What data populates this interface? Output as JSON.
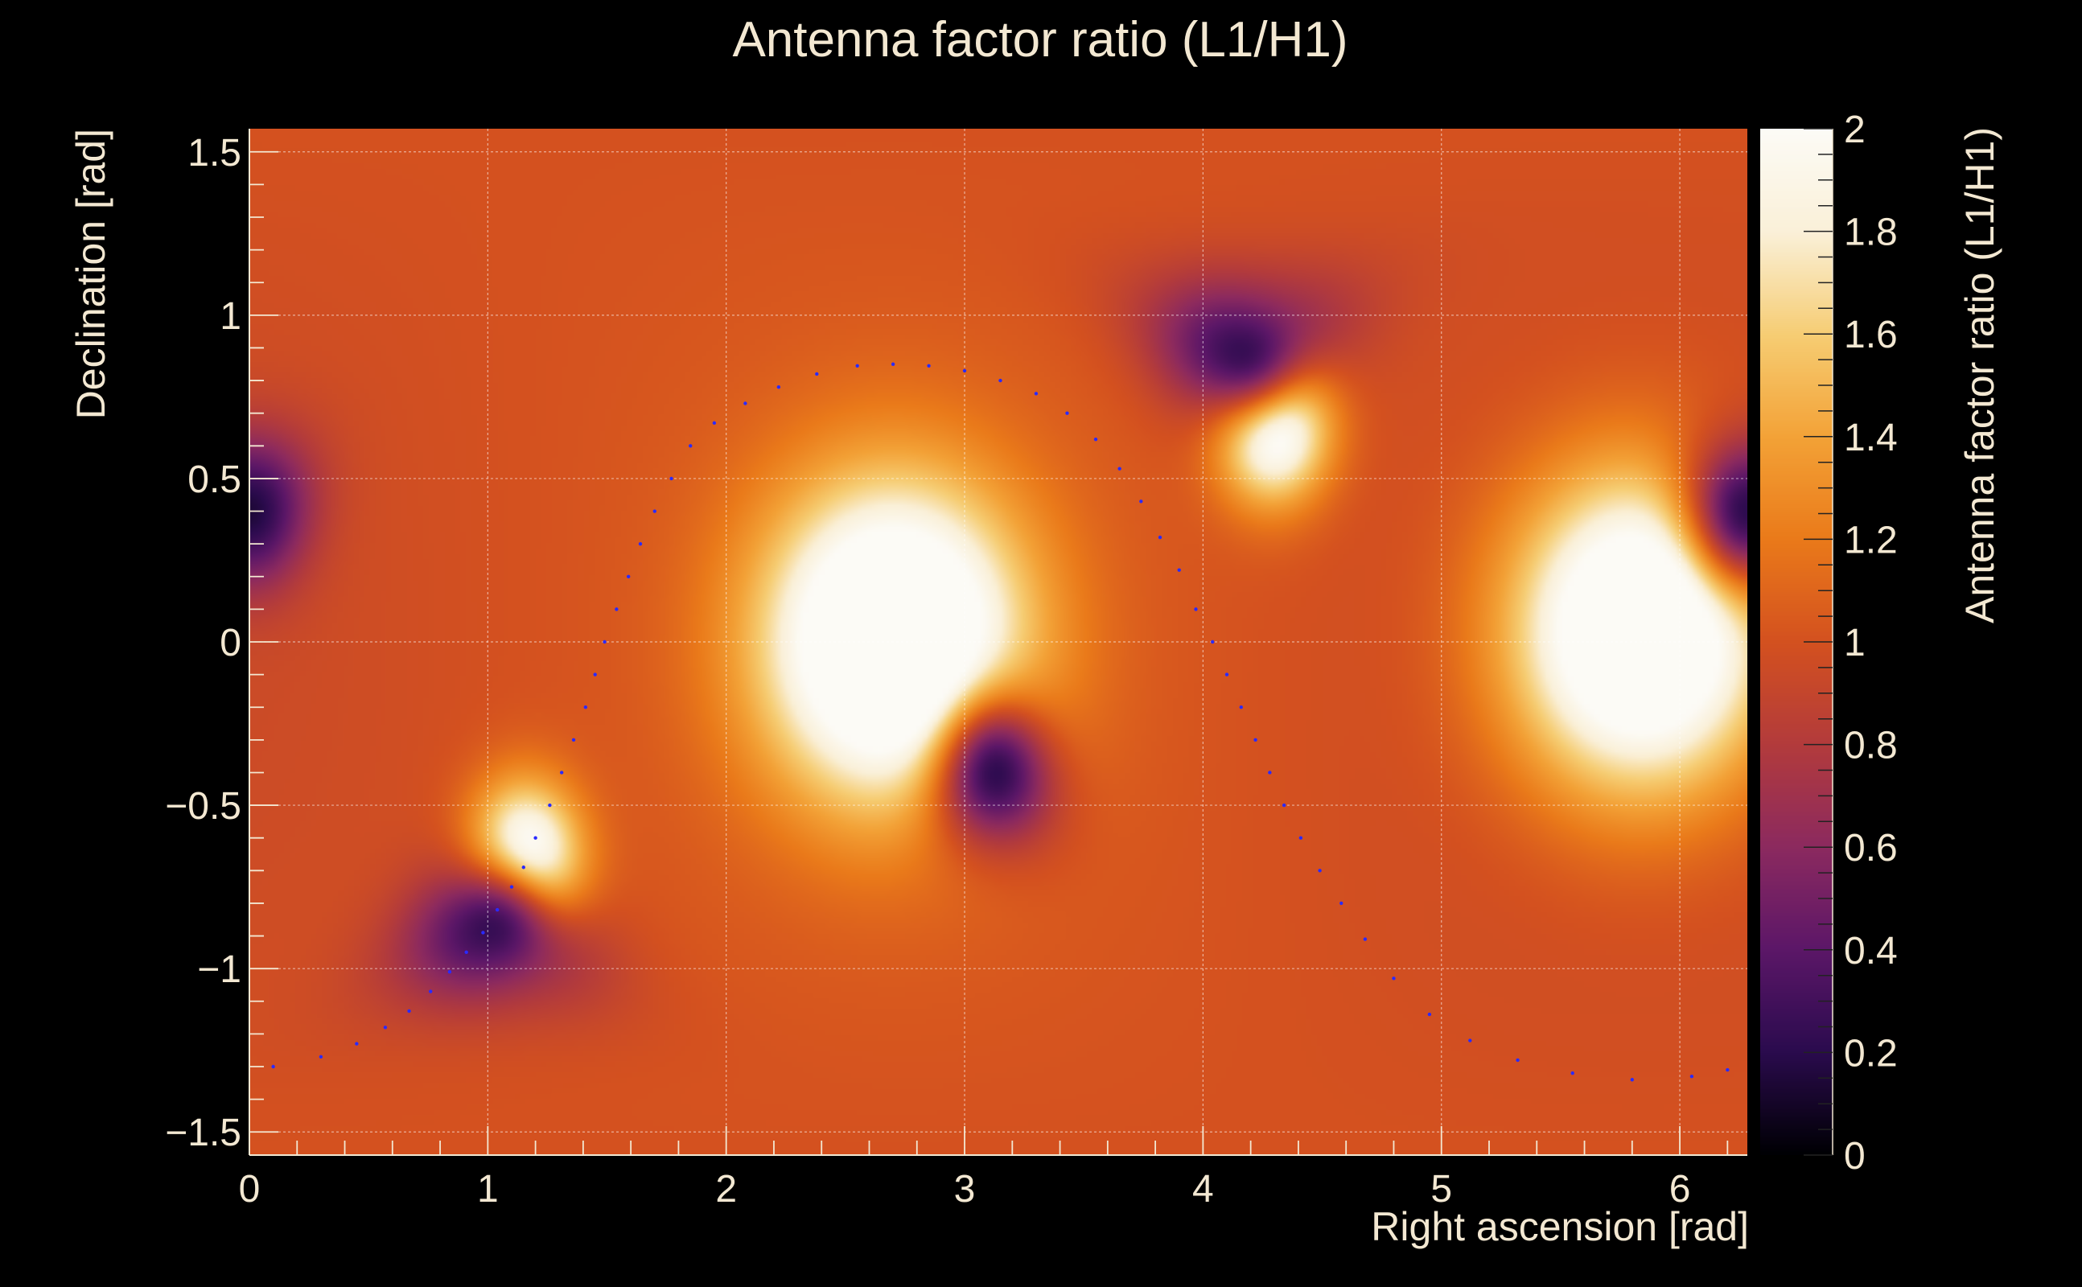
{
  "chart_data": {
    "type": "heatmap",
    "title": "Antenna factor ratio (L1/H1)",
    "xlabel": "Right ascension [rad]",
    "ylabel": "Declination [rad]",
    "zlabel": "Antenna factor ratio (L1/H1)",
    "xlim": [
      0,
      6.2832
    ],
    "ylim": [
      -1.5708,
      1.5708
    ],
    "zlim": [
      0,
      2
    ],
    "x_ticks": [
      {
        "value": 0,
        "label": "0"
      },
      {
        "value": 1,
        "label": "1"
      },
      {
        "value": 2,
        "label": "2"
      },
      {
        "value": 3,
        "label": "3"
      },
      {
        "value": 4,
        "label": "4"
      },
      {
        "value": 5,
        "label": "5"
      },
      {
        "value": 6,
        "label": "6"
      }
    ],
    "y_ticks": [
      {
        "value": -1.5,
        "label": "−1.5"
      },
      {
        "value": -1,
        "label": "−1"
      },
      {
        "value": -0.5,
        "label": "−0.5"
      },
      {
        "value": 0,
        "label": "0"
      },
      {
        "value": 0.5,
        "label": "0.5"
      },
      {
        "value": 1,
        "label": "1"
      },
      {
        "value": 1.5,
        "label": "1.5"
      }
    ],
    "z_ticks": [
      {
        "value": 0,
        "label": "0"
      },
      {
        "value": 0.2,
        "label": "0.2"
      },
      {
        "value": 0.4,
        "label": "0.4"
      },
      {
        "value": 0.6,
        "label": "0.6"
      },
      {
        "value": 0.8,
        "label": "0.8"
      },
      {
        "value": 1,
        "label": "1"
      },
      {
        "value": 1.2,
        "label": "1.2"
      },
      {
        "value": 1.4,
        "label": "1.4"
      },
      {
        "value": 1.6,
        "label": "1.6"
      },
      {
        "value": 1.8,
        "label": "1.8"
      },
      {
        "value": 2,
        "label": "2"
      }
    ],
    "grid": true,
    "colormap": [
      "#000004",
      "#2b0b4e",
      "#5c1768",
      "#8c2a5f",
      "#b33b3c",
      "#d4511f",
      "#ea7a1a",
      "#f3a237",
      "#f6cd73",
      "#faf0d8",
      "#fcfbf6"
    ],
    "features": [
      {
        "kind": "max",
        "ra": 2.7,
        "dec": 0.0,
        "value": 2.0
      },
      {
        "kind": "max",
        "ra": 5.84,
        "dec": 0.03,
        "value": 2.0
      },
      {
        "kind": "max",
        "ra": 4.29,
        "dec": 0.7,
        "value": 2.0
      },
      {
        "kind": "max",
        "ra": 1.15,
        "dec": -0.7,
        "value": 2.0
      },
      {
        "kind": "min",
        "ra": 3.13,
        "dec": -0.4,
        "value": 0.0
      },
      {
        "kind": "min",
        "ra": 4.18,
        "dec": 0.88,
        "value": 0.0
      },
      {
        "kind": "min",
        "ra": 1.03,
        "dec": -0.87,
        "value": 0.0
      },
      {
        "kind": "min",
        "ra": 0.0,
        "dec": 0.4,
        "value": 0.0
      },
      {
        "kind": "min",
        "ra": 6.28,
        "dec": 0.4,
        "value": 0.0
      }
    ],
    "overlay_curve": {
      "style": "dotted",
      "color": "#2a2aff",
      "points": [
        [
          0.1,
          -1.3
        ],
        [
          0.3,
          -1.27
        ],
        [
          0.45,
          -1.23
        ],
        [
          0.57,
          -1.18
        ],
        [
          0.67,
          -1.13
        ],
        [
          0.76,
          -1.07
        ],
        [
          0.84,
          -1.01
        ],
        [
          0.91,
          -0.95
        ],
        [
          0.98,
          -0.89
        ],
        [
          1.04,
          -0.82
        ],
        [
          1.1,
          -0.75
        ],
        [
          1.15,
          -0.69
        ],
        [
          1.2,
          -0.6
        ],
        [
          1.26,
          -0.5
        ],
        [
          1.31,
          -0.4
        ],
        [
          1.36,
          -0.3
        ],
        [
          1.41,
          -0.2
        ],
        [
          1.45,
          -0.1
        ],
        [
          1.49,
          0.0
        ],
        [
          1.54,
          0.1
        ],
        [
          1.59,
          0.2
        ],
        [
          1.64,
          0.3
        ],
        [
          1.7,
          0.4
        ],
        [
          1.77,
          0.5
        ],
        [
          1.85,
          0.6
        ],
        [
          1.95,
          0.67
        ],
        [
          2.08,
          0.73
        ],
        [
          2.22,
          0.78
        ],
        [
          2.38,
          0.82
        ],
        [
          2.55,
          0.845
        ],
        [
          2.7,
          0.85
        ],
        [
          2.85,
          0.845
        ],
        [
          3.0,
          0.83
        ],
        [
          3.15,
          0.8
        ],
        [
          3.3,
          0.76
        ],
        [
          3.43,
          0.7
        ],
        [
          3.55,
          0.62
        ],
        [
          3.65,
          0.53
        ],
        [
          3.74,
          0.43
        ],
        [
          3.82,
          0.32
        ],
        [
          3.9,
          0.22
        ],
        [
          3.97,
          0.1
        ],
        [
          4.04,
          0.0
        ],
        [
          4.1,
          -0.1
        ],
        [
          4.16,
          -0.2
        ],
        [
          4.22,
          -0.3
        ],
        [
          4.28,
          -0.4
        ],
        [
          4.34,
          -0.5
        ],
        [
          4.41,
          -0.6
        ],
        [
          4.49,
          -0.7
        ],
        [
          4.58,
          -0.8
        ],
        [
          4.68,
          -0.91
        ],
        [
          4.8,
          -1.03
        ],
        [
          4.95,
          -1.14
        ],
        [
          5.12,
          -1.22
        ],
        [
          5.32,
          -1.28
        ],
        [
          5.55,
          -1.32
        ],
        [
          5.8,
          -1.34
        ],
        [
          6.05,
          -1.33
        ],
        [
          6.2,
          -1.31
        ]
      ]
    }
  }
}
